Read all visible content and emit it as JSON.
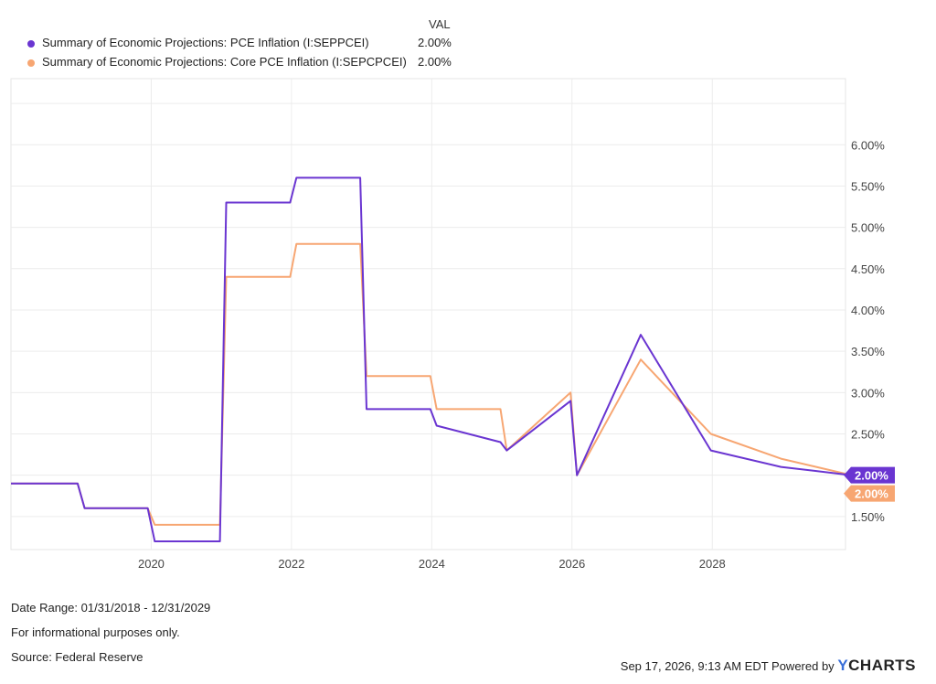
{
  "legend": {
    "header": "VAL",
    "entries": [
      {
        "name": "Summary of Economic Projections: PCE Inflation (I:SEPPCEI)",
        "value": "2.00%",
        "color": "#6a35d1"
      },
      {
        "name": "Summary of Economic Projections: Core PCE Inflation (I:SEPCPCEI)",
        "value": "2.00%",
        "color": "#f7a672"
      }
    ]
  },
  "chart_data": {
    "type": "line",
    "x_tick_labels": [
      "2020",
      "2022",
      "2024",
      "2026",
      "2028"
    ],
    "y_tick_labels": [
      "1.50%",
      "2.00%",
      "2.50%",
      "3.00%",
      "3.50%",
      "4.00%",
      "4.50%",
      "5.00%",
      "5.50%",
      "6.00%"
    ],
    "y_ticks": [
      1.5,
      2.0,
      2.5,
      3.0,
      3.5,
      4.0,
      4.5,
      5.0,
      5.5,
      6.0
    ],
    "x_ticks": [
      2020,
      2022,
      2024,
      2026,
      2028
    ],
    "xlim": [
      2018.0,
      2029.9
    ],
    "ylim": [
      1.1,
      6.8
    ],
    "grid": true,
    "legend_position": "top-left",
    "end_labels": [
      "2.00%",
      "2.00%"
    ],
    "series": [
      {
        "name": "Summary of Economic Projections: PCE Inflation (I:SEPPCEI)",
        "color": "#6a35d1",
        "points": [
          [
            2018.0,
            1.9
          ],
          [
            2018.95,
            1.9
          ],
          [
            2019.05,
            1.6
          ],
          [
            2019.95,
            1.6
          ],
          [
            2020.05,
            1.2
          ],
          [
            2020.98,
            1.2
          ],
          [
            2021.07,
            5.3
          ],
          [
            2021.98,
            5.3
          ],
          [
            2022.07,
            5.6
          ],
          [
            2022.98,
            5.6
          ],
          [
            2023.07,
            2.8
          ],
          [
            2023.98,
            2.8
          ],
          [
            2024.07,
            2.6
          ],
          [
            2024.98,
            2.4
          ],
          [
            2025.07,
            2.3
          ],
          [
            2025.98,
            2.9
          ],
          [
            2026.07,
            2.0
          ],
          [
            2026.98,
            3.7
          ],
          [
            2027.98,
            2.3
          ],
          [
            2028.98,
            2.1
          ],
          [
            2029.99,
            2.0
          ]
        ]
      },
      {
        "name": "Summary of Economic Projections: Core PCE Inflation (I:SEPCPCEI)",
        "color": "#f7a672",
        "points": [
          [
            2018.0,
            1.9
          ],
          [
            2018.95,
            1.9
          ],
          [
            2019.05,
            1.6
          ],
          [
            2019.95,
            1.6
          ],
          [
            2020.05,
            1.4
          ],
          [
            2020.98,
            1.4
          ],
          [
            2021.07,
            4.4
          ],
          [
            2021.98,
            4.4
          ],
          [
            2022.07,
            4.8
          ],
          [
            2022.98,
            4.8
          ],
          [
            2023.07,
            3.2
          ],
          [
            2023.98,
            3.2
          ],
          [
            2024.07,
            2.8
          ],
          [
            2024.98,
            2.8
          ],
          [
            2025.07,
            2.3
          ],
          [
            2025.98,
            3.0
          ],
          [
            2026.07,
            2.0
          ],
          [
            2026.98,
            3.4
          ],
          [
            2027.98,
            2.5
          ],
          [
            2028.98,
            2.2
          ],
          [
            2029.99,
            2.0
          ]
        ]
      }
    ]
  },
  "footer": {
    "date_range": "Date Range: 01/31/2018 - 12/31/2029",
    "disclaimer": "For informational purposes only.",
    "source": "Source: Federal Reserve",
    "timestamp": "Sep 17, 2026, 9:13 AM EDT Powered by",
    "brand_y": "Y",
    "brand_rest": "CHARTS"
  }
}
